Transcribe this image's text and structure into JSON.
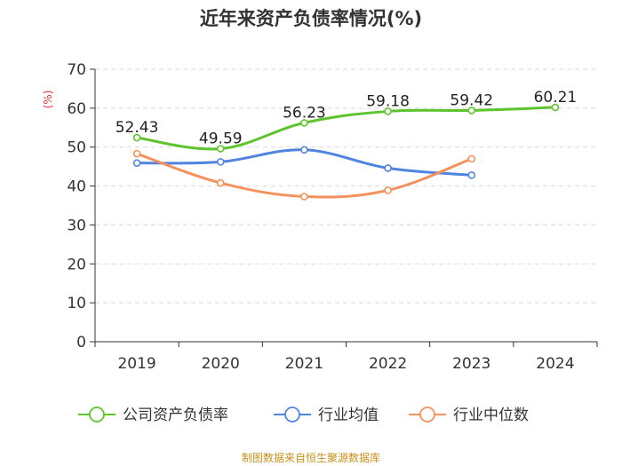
{
  "chart_data": {
    "type": "line",
    "title": "近年来资产负债率情况(%)",
    "ylabel": "(%)",
    "xlabel": "",
    "categories": [
      "2019",
      "2020",
      "2021",
      "2022",
      "2023",
      "2024"
    ],
    "ylim": [
      0,
      70
    ],
    "yticks": [
      0,
      10,
      20,
      30,
      40,
      50,
      60,
      70
    ],
    "grid": true,
    "legend_position": "bottom",
    "series": [
      {
        "name": "公司资产负债率",
        "color": "#5ec42e",
        "values": [
          52.43,
          49.59,
          56.23,
          59.18,
          59.42,
          60.21
        ],
        "labels": [
          "52.43",
          "49.59",
          "56.23",
          "59.18",
          "59.42",
          "60.21"
        ],
        "show_labels": true
      },
      {
        "name": "行业均值",
        "color": "#4f84e0",
        "values": [
          45.9,
          46.2,
          49.3,
          44.6,
          42.8,
          null
        ],
        "show_labels": false
      },
      {
        "name": "行业中位数",
        "color": "#f5915c",
        "values": [
          48.3,
          40.8,
          37.3,
          38.9,
          47.0,
          null
        ],
        "show_labels": false
      }
    ]
  },
  "source": "制图数据来自恒生聚源数据库"
}
